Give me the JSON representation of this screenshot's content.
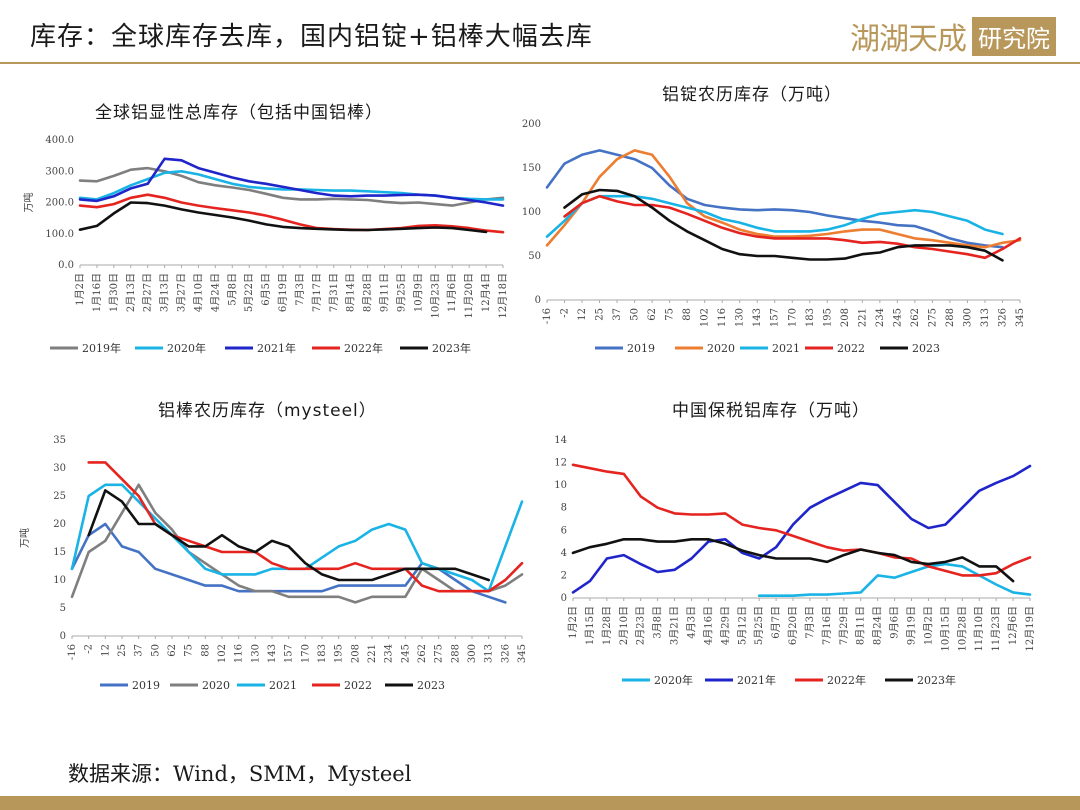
{
  "header": {
    "title": "库存：全球库存去库，国内铝锭+铝棒大幅去库",
    "logo_text": "湖湖天成",
    "logo_box": "研究院"
  },
  "source": "数据来源：Wind，SMM，Mysteel",
  "colors": {
    "c2019": "#4472c4",
    "c2020": "#ed7d31",
    "c2021": "#1ab3e6",
    "c2022": "#e52420",
    "c2023": "#111111",
    "gray": "#7f7f7f",
    "blue": "#1f25c9",
    "gold": "#b8975a"
  },
  "chart_data": [
    {
      "id": "c1",
      "type": "line",
      "title": "全球铝显性总库存（包括中国铝棒）",
      "ylabel": "万吨",
      "ylim": [
        0,
        400
      ],
      "yticks": [
        "0.0",
        "100.0",
        "200.0",
        "300.0",
        "400.0"
      ],
      "x": [
        "1月2日",
        "1月16日",
        "1月30日",
        "2月13日",
        "2月27日",
        "3月13日",
        "3月27日",
        "4月10日",
        "4月24日",
        "5月8日",
        "5月22日",
        "6月5日",
        "6月19日",
        "7月3日",
        "7月17日",
        "7月31日",
        "8月14日",
        "8月28日",
        "9月11日",
        "9月25日",
        "10月9日",
        "10月23日",
        "11月6日",
        "11月20日",
        "12月4日",
        "12月18日"
      ],
      "series": [
        {
          "name": "2019年",
          "color": "#7f7f7f",
          "values": [
            270,
            268,
            285,
            305,
            310,
            300,
            285,
            265,
            255,
            248,
            240,
            228,
            215,
            210,
            210,
            212,
            210,
            208,
            202,
            198,
            200,
            195,
            190,
            200,
            210,
            215
          ]
        },
        {
          "name": "2020年",
          "color": "#1ab3e6",
          "values": [
            215,
            210,
            230,
            255,
            275,
            295,
            300,
            290,
            275,
            260,
            250,
            245,
            242,
            242,
            240,
            238,
            238,
            236,
            233,
            230,
            225,
            222,
            215,
            212,
            210,
            210
          ]
        },
        {
          "name": "2021年",
          "color": "#1f25c9",
          "values": [
            210,
            205,
            220,
            245,
            260,
            340,
            335,
            310,
            295,
            280,
            268,
            260,
            250,
            240,
            230,
            222,
            220,
            222,
            222,
            224,
            225,
            222,
            215,
            208,
            200,
            190
          ]
        },
        {
          "name": "2022年",
          "color": "#e52420",
          "values": [
            190,
            185,
            195,
            215,
            225,
            215,
            200,
            190,
            182,
            175,
            168,
            158,
            145,
            130,
            118,
            115,
            113,
            112,
            115,
            118,
            125,
            127,
            124,
            118,
            110,
            105
          ]
        },
        {
          "name": "2023年",
          "color": "#111111",
          "values": [
            113,
            125,
            165,
            200,
            198,
            190,
            178,
            168,
            160,
            152,
            142,
            130,
            122,
            118,
            116,
            114,
            112,
            112,
            114,
            116,
            118,
            120,
            118,
            112,
            106,
            null
          ]
        }
      ]
    },
    {
      "id": "c2",
      "type": "line",
      "title": "铝锭农历库存（万吨）",
      "ylabel": "",
      "ylim": [
        0,
        200
      ],
      "yticks": [
        "0",
        "50",
        "100",
        "150",
        "200"
      ],
      "x": [
        "-16",
        "-2",
        "12",
        "25",
        "37",
        "50",
        "62",
        "75",
        "88",
        "102",
        "116",
        "130",
        "143",
        "157",
        "170",
        "183",
        "195",
        "208",
        "221",
        "234",
        "245",
        "262",
        "275",
        "288",
        "300",
        "313",
        "326",
        "345"
      ],
      "series": [
        {
          "name": "2019",
          "color": "#4472c4",
          "values": [
            128,
            155,
            165,
            170,
            165,
            160,
            150,
            130,
            115,
            108,
            105,
            103,
            102,
            103,
            102,
            100,
            96,
            93,
            90,
            88,
            85,
            84,
            78,
            70,
            65,
            62,
            60,
            null
          ]
        },
        {
          "name": "2020",
          "color": "#ed7d31",
          "values": [
            62,
            85,
            110,
            140,
            160,
            170,
            165,
            140,
            110,
            95,
            88,
            80,
            75,
            72,
            72,
            73,
            75,
            78,
            80,
            80,
            75,
            70,
            68,
            65,
            62,
            60,
            65,
            68
          ]
        },
        {
          "name": "2021",
          "color": "#1ab3e6",
          "values": [
            72,
            90,
            110,
            118,
            118,
            118,
            115,
            110,
            105,
            100,
            92,
            88,
            82,
            78,
            78,
            78,
            80,
            85,
            92,
            98,
            100,
            102,
            100,
            95,
            90,
            80,
            75,
            null
          ]
        },
        {
          "name": "2022",
          "color": "#e52420",
          "values": [
            null,
            95,
            110,
            118,
            112,
            108,
            108,
            105,
            98,
            90,
            82,
            76,
            72,
            70,
            70,
            70,
            70,
            68,
            65,
            66,
            64,
            60,
            58,
            55,
            52,
            48,
            58,
            70
          ]
        },
        {
          "name": "2023",
          "color": "#111111",
          "values": [
            null,
            105,
            120,
            125,
            124,
            118,
            105,
            90,
            78,
            68,
            58,
            52,
            50,
            50,
            48,
            46,
            46,
            47,
            52,
            54,
            60,
            62,
            62,
            62,
            60,
            56,
            45,
            null
          ]
        }
      ]
    },
    {
      "id": "c3",
      "type": "line",
      "title": "铝棒农历库存（mysteel）",
      "ylabel": "万吨",
      "ylim": [
        0,
        35
      ],
      "yticks": [
        "0",
        "5",
        "10",
        "15",
        "20",
        "25",
        "30",
        "35"
      ],
      "x": [
        "-16",
        "-2",
        "12",
        "25",
        "37",
        "50",
        "62",
        "75",
        "88",
        "102",
        "116",
        "130",
        "143",
        "157",
        "170",
        "183",
        "195",
        "208",
        "221",
        "234",
        "245",
        "262",
        "275",
        "288",
        "300",
        "313",
        "326",
        "345"
      ],
      "series": [
        {
          "name": "2019",
          "color": "#4472c4",
          "values": [
            12,
            18,
            20,
            16,
            15,
            12,
            11,
            10,
            9,
            9,
            8,
            8,
            8,
            8,
            8,
            8,
            9,
            9,
            9,
            9,
            9,
            13,
            12,
            10,
            8,
            7,
            6,
            null
          ]
        },
        {
          "name": "2020",
          "color": "#7f7f7f",
          "values": [
            7,
            15,
            17,
            22,
            27,
            22,
            19,
            15,
            13,
            11,
            9,
            8,
            8,
            7,
            7,
            7,
            7,
            6,
            7,
            7,
            7,
            12,
            10,
            8,
            8,
            8,
            9,
            11
          ]
        },
        {
          "name": "2021",
          "color": "#1ab3e6",
          "values": [
            12,
            25,
            27,
            27,
            24,
            21,
            18,
            15,
            12,
            11,
            11,
            11,
            12,
            12,
            12,
            14,
            16,
            17,
            19,
            20,
            19,
            13,
            12,
            11,
            10,
            8,
            16,
            24
          ]
        },
        {
          "name": "2022",
          "color": "#e52420",
          "values": [
            null,
            31,
            31,
            28,
            25,
            20,
            18,
            17,
            16,
            15,
            15,
            15,
            13,
            12,
            12,
            12,
            12,
            13,
            12,
            12,
            12,
            9,
            8,
            8,
            8,
            8,
            10,
            13
          ]
        },
        {
          "name": "2023",
          "color": "#111111",
          "values": [
            null,
            18,
            26,
            24,
            20,
            20,
            18,
            16,
            16,
            18,
            16,
            15,
            17,
            16,
            13,
            11,
            10,
            10,
            10,
            11,
            12,
            12,
            12,
            12,
            11,
            10,
            null,
            null
          ]
        }
      ]
    },
    {
      "id": "c4",
      "type": "line",
      "title": "中国保税铝库存（万吨）",
      "ylabel": "",
      "ylim": [
        0,
        14
      ],
      "yticks": [
        "0",
        "2",
        "4",
        "6",
        "8",
        "10",
        "12",
        "14"
      ],
      "x": [
        "1月2日",
        "1月15日",
        "1月28日",
        "2月10日",
        "2月23日",
        "3月8日",
        "3月21日",
        "4月3日",
        "4月16日",
        "4月29日",
        "5月12日",
        "5月25日",
        "6月7日",
        "6月20日",
        "7月3日",
        "7月16日",
        "7月29日",
        "8月11日",
        "8月24日",
        "9月6日",
        "9月19日",
        "10月2日",
        "10月15日",
        "10月28日",
        "11月10日",
        "11月23日",
        "12月6日",
        "12月19日"
      ],
      "series": [
        {
          "name": "2020年",
          "color": "#1ab3e6",
          "values": [
            null,
            null,
            null,
            null,
            null,
            null,
            null,
            null,
            null,
            null,
            null,
            0.2,
            0.2,
            0.2,
            0.3,
            0.3,
            0.4,
            0.5,
            2.0,
            1.8,
            2.3,
            2.8,
            3.0,
            2.8,
            2.0,
            1.2,
            0.5,
            0.3
          ]
        },
        {
          "name": "2021年",
          "color": "#1f25c9",
          "values": [
            0.5,
            1.5,
            3.5,
            3.8,
            3.0,
            2.3,
            2.5,
            3.5,
            5.0,
            5.2,
            4.0,
            3.5,
            4.5,
            6.5,
            8.0,
            8.8,
            9.5,
            10.2,
            10.0,
            8.5,
            7.0,
            6.2,
            6.5,
            8.0,
            9.5,
            10.2,
            10.8,
            11.7
          ]
        },
        {
          "name": "2022年",
          "color": "#e52420",
          "values": [
            11.8,
            11.5,
            11.2,
            11.0,
            9.0,
            8.0,
            7.5,
            7.4,
            7.4,
            7.5,
            6.5,
            6.2,
            6.0,
            5.5,
            5.0,
            4.5,
            4.2,
            4.3,
            4.0,
            3.6,
            3.5,
            2.8,
            2.4,
            2.0,
            2.0,
            2.2,
            3.0,
            3.6
          ]
        },
        {
          "name": "2023年",
          "color": "#111111",
          "values": [
            4.0,
            4.5,
            4.8,
            5.2,
            5.2,
            5.0,
            5.0,
            5.2,
            5.2,
            4.8,
            4.2,
            3.8,
            3.5,
            3.5,
            3.5,
            3.2,
            3.8,
            4.3,
            4.0,
            3.8,
            3.2,
            3.0,
            3.2,
            3.6,
            2.8,
            2.8,
            1.5,
            null
          ]
        }
      ]
    }
  ]
}
